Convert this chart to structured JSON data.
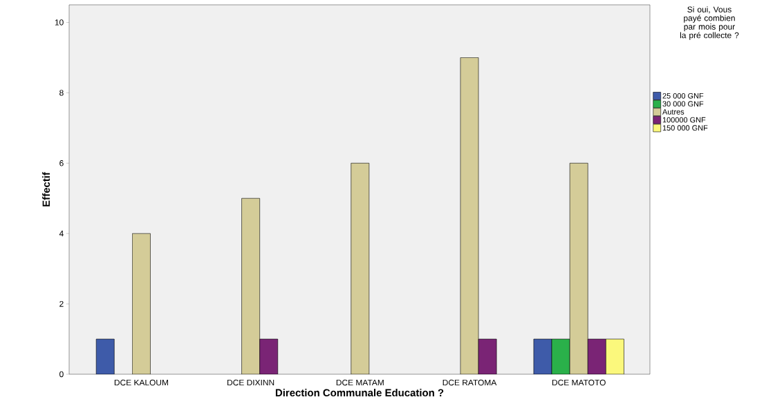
{
  "chart_data": {
    "type": "bar",
    "xlabel": "Direction Communale Education ?",
    "ylabel": "Effectif",
    "legend_title": "Si oui, Vous payé combien par mois pour la pré collecte ?",
    "categories": [
      "DCE KALOUM",
      "DCE DIXINN",
      "DCE MATAM",
      "DCE RATOMA",
      "DCE MATOTO"
    ],
    "series": [
      {
        "name": "25 000 GNF",
        "color": "#3e5ba9",
        "values": [
          1,
          null,
          null,
          null,
          1
        ]
      },
      {
        "name": "30 000 GNF",
        "color": "#2ab04a",
        "values": [
          null,
          null,
          null,
          null,
          1
        ]
      },
      {
        "name": "Autres",
        "color": "#d4cc98",
        "values": [
          4,
          5,
          6,
          9,
          6
        ]
      },
      {
        "name": "100000 GNF",
        "color": "#7a2475",
        "values": [
          null,
          1,
          null,
          1,
          1
        ]
      },
      {
        "name": "150 000 GNF",
        "color": "#fbf87c",
        "values": [
          null,
          null,
          null,
          null,
          1
        ]
      }
    ],
    "ylim": [
      0,
      10.5
    ],
    "yticks": [
      0,
      2,
      4,
      6,
      8,
      10
    ],
    "grid": false,
    "legend": "right"
  }
}
